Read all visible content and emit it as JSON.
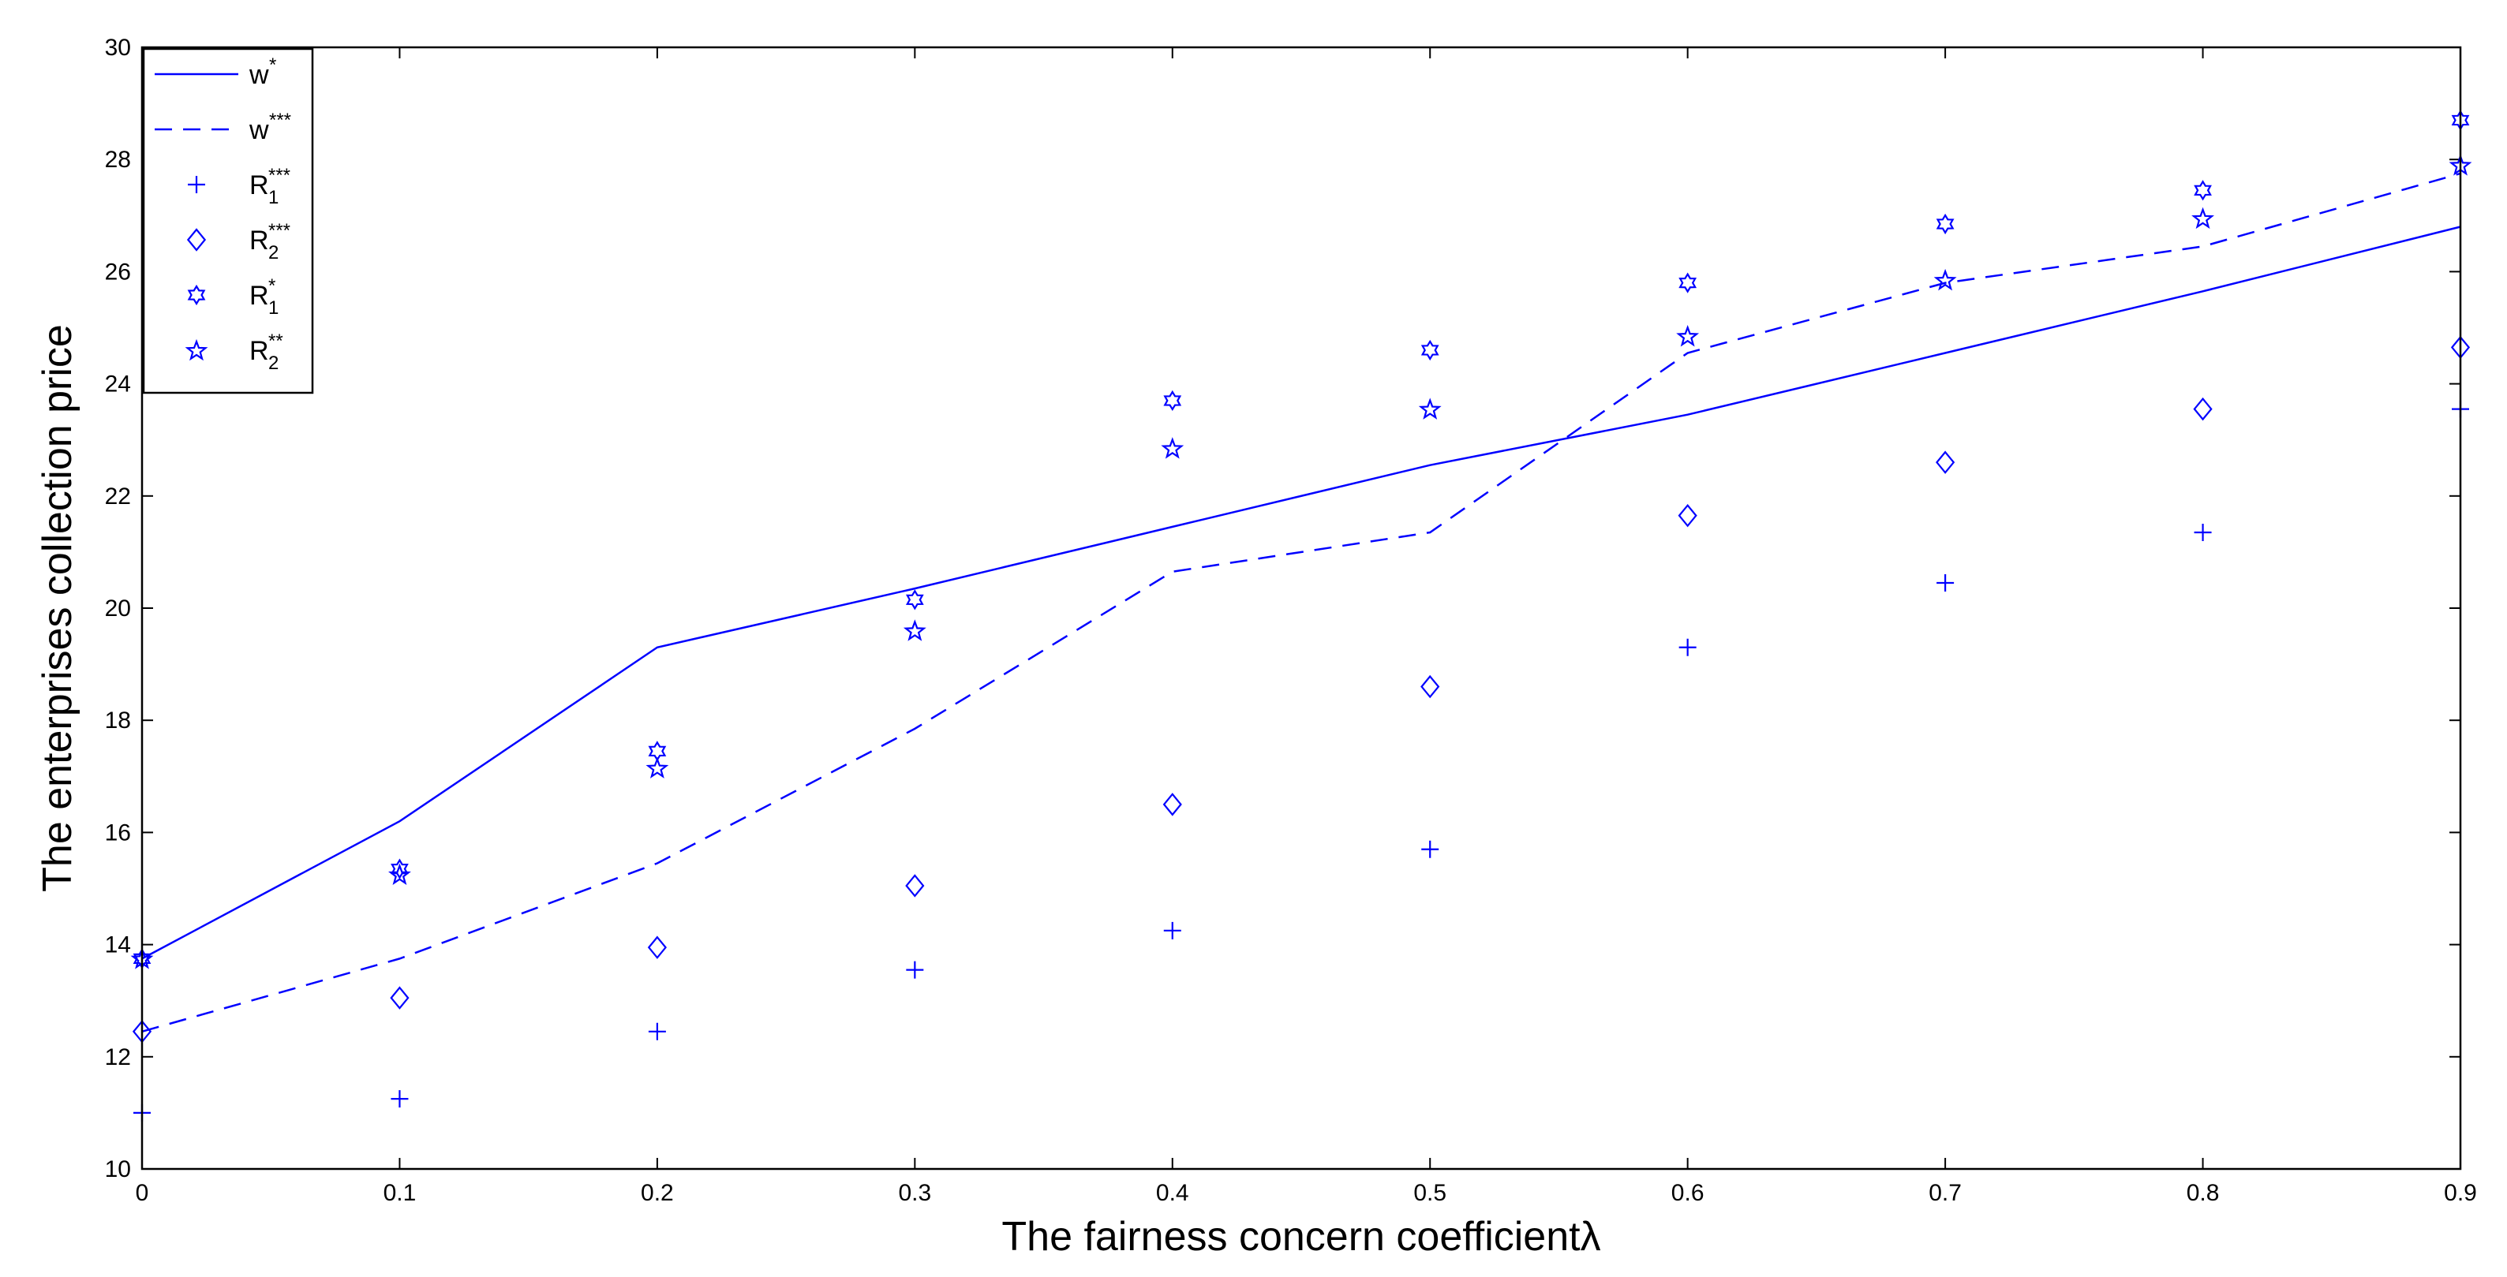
{
  "chart_data": {
    "type": "line",
    "title": "",
    "xlabel": "The fairness concern coefficientλ",
    "ylabel": "The enterprises collection price",
    "xlim": [
      0,
      0.9
    ],
    "ylim": [
      10,
      30
    ],
    "x_ticks": [
      "0",
      "0.1",
      "0.2",
      "0.3",
      "0.4",
      "0.5",
      "0.6",
      "0.7",
      "0.8",
      "0.9"
    ],
    "y_ticks": [
      "10",
      "12",
      "14",
      "16",
      "18",
      "20",
      "22",
      "24",
      "26",
      "28",
      "30"
    ],
    "grid": false,
    "legend_position": "top-left",
    "color": "#0000ff",
    "x": [
      0,
      0.1,
      0.2,
      0.3,
      0.4,
      0.5,
      0.6,
      0.7,
      0.8,
      0.9
    ],
    "series": [
      {
        "name": "w*",
        "label_base": "w",
        "label_sup": "*",
        "label_sub": "",
        "style": "solid-line",
        "values": [
          13.75,
          16.2,
          19.3,
          20.35,
          21.45,
          22.55,
          23.45,
          24.55,
          25.65,
          26.8
        ]
      },
      {
        "name": "w***",
        "label_base": "w",
        "label_sup": "***",
        "label_sub": "",
        "style": "dashed-line",
        "values": [
          12.45,
          13.75,
          15.45,
          17.85,
          20.65,
          21.35,
          24.55,
          25.8,
          26.45,
          27.75
        ]
      },
      {
        "name": "R1***",
        "label_base": "R",
        "label_sup": "***",
        "label_sub": "1",
        "style": "plus-marker",
        "values": [
          11.0,
          11.25,
          12.45,
          13.55,
          14.25,
          15.7,
          19.3,
          20.45,
          21.35,
          23.55
        ]
      },
      {
        "name": "R2***",
        "label_base": "R",
        "label_sup": "***",
        "label_sub": "2",
        "style": "diamond-marker",
        "values": [
          12.45,
          13.05,
          13.95,
          15.05,
          16.5,
          18.6,
          21.65,
          22.6,
          23.55,
          24.65
        ]
      },
      {
        "name": "R1*",
        "label_base": "R",
        "label_sup": "*",
        "label_sub": "1",
        "style": "hexagram-marker",
        "values": [
          13.75,
          15.35,
          17.45,
          20.15,
          23.7,
          24.6,
          25.8,
          26.85,
          27.45,
          28.7
        ]
      },
      {
        "name": "R2**",
        "label_base": "R",
        "label_sup": "**",
        "label_sub": "2",
        "style": "pentagram-marker",
        "values": [
          13.75,
          15.25,
          17.15,
          19.6,
          22.85,
          23.55,
          24.85,
          25.85,
          26.95,
          27.9
        ]
      }
    ]
  }
}
